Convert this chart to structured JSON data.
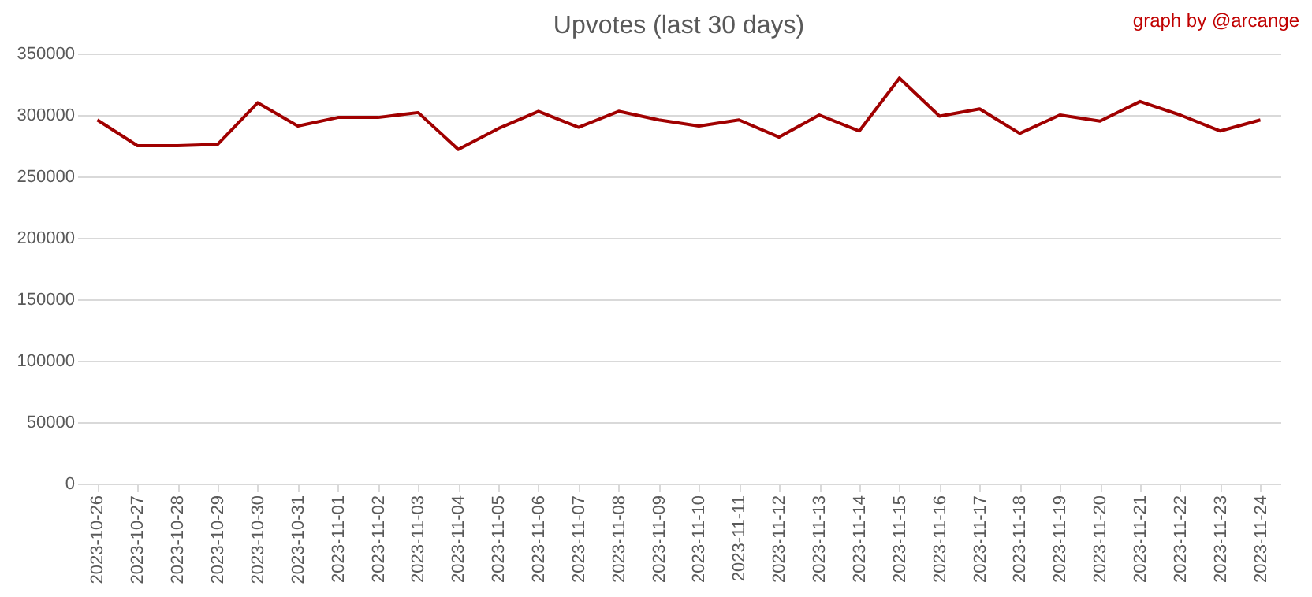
{
  "chart_data": {
    "type": "line",
    "title": "Upvotes (last 30 days)",
    "annotations": [
      "graph by @arcange"
    ],
    "categories": [
      "2023-10-26",
      "2023-10-27",
      "2023-10-28",
      "2023-10-29",
      "2023-10-30",
      "2023-10-31",
      "2023-11-01",
      "2023-11-02",
      "2023-11-03",
      "2023-11-04",
      "2023-11-05",
      "2023-11-06",
      "2023-11-07",
      "2023-11-08",
      "2023-11-09",
      "2023-11-10",
      "2023-11-11",
      "2023-11-12",
      "2023-11-13",
      "2023-11-14",
      "2023-11-15",
      "2023-11-16",
      "2023-11-17",
      "2023-11-18",
      "2023-11-19",
      "2023-11-20",
      "2023-11-21",
      "2023-11-22",
      "2023-11-23",
      "2023-11-24"
    ],
    "series": [
      {
        "color": "#a00000",
        "values": [
          296000,
          275000,
          275000,
          276000,
          310000,
          291000,
          298000,
          298000,
          302000,
          272000,
          289000,
          303000,
          290000,
          303000,
          296000,
          291000,
          296000,
          282000,
          300000,
          287000,
          330000,
          299000,
          305000,
          285000,
          300000,
          295000,
          311000,
          300000,
          287000,
          296000
        ]
      }
    ],
    "ylim": [
      0,
      350000
    ],
    "yticks": [
      0,
      50000,
      100000,
      150000,
      200000,
      250000,
      300000,
      350000
    ],
    "grid": "y",
    "legend": false,
    "marker": "none",
    "line_style": "solid"
  }
}
